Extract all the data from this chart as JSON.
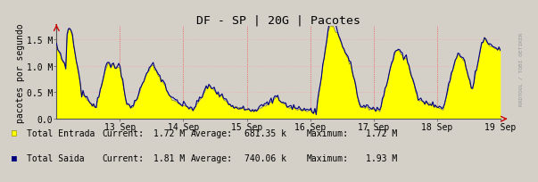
{
  "title": "DF - SP | 20G | Pacotes",
  "ylabel": "pacotes por segundo",
  "background_color": "#d4d0c8",
  "plot_bg_color": "#d4d0c8",
  "ytick_labels": [
    "0.0",
    "0.5 M",
    "1.0 M",
    "1.5 M"
  ],
  "ytick_values": [
    0,
    500000,
    1000000,
    1500000
  ],
  "ymax": 1750000,
  "xlabel_dates": [
    "13 Sep",
    "14 Sep",
    "15 Sep",
    "16 Sep",
    "17 Sep",
    "18 Sep",
    "19 Sep"
  ],
  "fill_color": "#ffff00",
  "line_color": "#00007f",
  "grid_color_h": "#ff9999",
  "grid_color_v": "#ff9999",
  "vline_color": "#ff0000",
  "watermark": "RRDTOOL / TOBI OETIKER",
  "legend": [
    {
      "label": "Total Entrada",
      "current": "1.72 M",
      "average": "681.35 k",
      "maximum": "1.72 M",
      "color": "#ffff00",
      "edge": "#888800"
    },
    {
      "label": "Total Saida",
      "current": "1.81 M",
      "average": "740.06 k",
      "maximum": "1.93 M",
      "color": "#00007f",
      "edge": "#00007f"
    }
  ],
  "n_points": 336
}
